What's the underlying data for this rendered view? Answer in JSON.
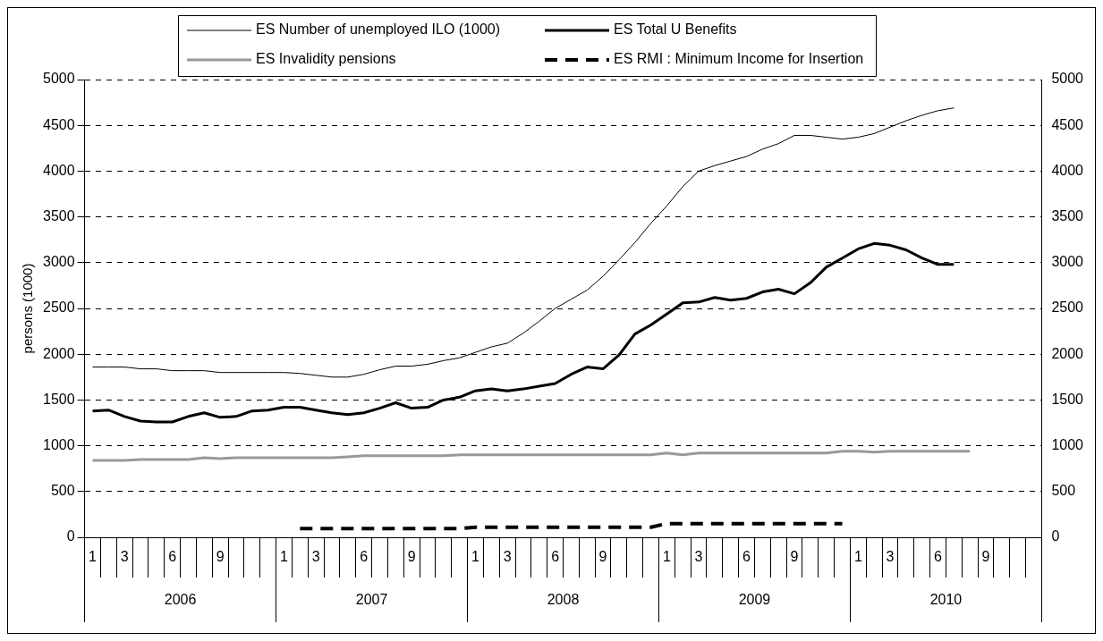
{
  "chart_data": {
    "type": "line",
    "categories": [
      "1",
      null,
      "3",
      null,
      null,
      "6",
      null,
      null,
      "9",
      null,
      null,
      null,
      "1",
      null,
      "3",
      null,
      null,
      "6",
      null,
      null,
      "9",
      null,
      null,
      null,
      "1",
      null,
      "3",
      null,
      null,
      "6",
      null,
      null,
      "9",
      null,
      null,
      null,
      "1",
      null,
      "3",
      null,
      null,
      "6",
      null,
      null,
      "9",
      null,
      null,
      null,
      "1",
      null,
      "3",
      null,
      null,
      "6",
      null,
      null,
      "9",
      null,
      null,
      null
    ],
    "series": [
      {
        "name": "ES Number of unemployed ILO (1000)",
        "color": "#000000",
        "line_style": "solid",
        "values": [
          1860,
          1860,
          1860,
          1840,
          1840,
          1820,
          1820,
          1820,
          1800,
          1800,
          1800,
          1800,
          1800,
          1790,
          1770,
          1750,
          1750,
          1780,
          1830,
          1870,
          1870,
          1890,
          1930,
          1960,
          2020,
          2080,
          2120,
          2230,
          2360,
          2500,
          2600,
          2700,
          2850,
          3030,
          3220,
          3430,
          3620,
          3830,
          4000,
          4060,
          4110,
          4160,
          4240,
          4300,
          4390,
          4390,
          4370,
          4350,
          4370,
          4410,
          4480,
          4550,
          4610,
          4660,
          4690,
          null,
          null,
          null,
          null,
          null
        ]
      },
      {
        "name": "ES Total U Benefits",
        "color": "#000000",
        "line_style": "solid",
        "values": [
          1380,
          1390,
          1320,
          1270,
          1260,
          1260,
          1320,
          1360,
          1310,
          1320,
          1380,
          1390,
          1420,
          1420,
          1390,
          1360,
          1340,
          1360,
          1410,
          1470,
          1410,
          1420,
          1500,
          1530,
          1600,
          1620,
          1600,
          1620,
          1650,
          1680,
          1780,
          1860,
          1840,
          1990,
          2220,
          2320,
          2440,
          2560,
          2570,
          2620,
          2590,
          2610,
          2680,
          2710,
          2660,
          2780,
          2950,
          3050,
          3150,
          3210,
          3190,
          3140,
          3050,
          2980,
          2980,
          null,
          null,
          null,
          null,
          null
        ]
      },
      {
        "name": "ES Invalidity pensions",
        "color": "#999999",
        "line_style": "solid",
        "values": [
          840,
          840,
          840,
          850,
          850,
          850,
          850,
          870,
          860,
          870,
          870,
          870,
          870,
          870,
          870,
          870,
          880,
          890,
          890,
          890,
          890,
          890,
          890,
          900,
          900,
          900,
          900,
          900,
          900,
          900,
          900,
          900,
          900,
          900,
          900,
          900,
          920,
          900,
          920,
          920,
          920,
          920,
          920,
          920,
          920,
          920,
          920,
          940,
          940,
          930,
          940,
          940,
          940,
          940,
          940,
          940,
          null,
          null,
          null,
          null
        ]
      },
      {
        "name": "ES RMI : Minimum Income for Insertion",
        "color": "#000000",
        "line_style": "dashed",
        "values": [
          null,
          null,
          null,
          null,
          null,
          null,
          null,
          null,
          null,
          null,
          null,
          null,
          null,
          95,
          95,
          95,
          95,
          95,
          95,
          95,
          95,
          95,
          95,
          95,
          110,
          110,
          110,
          110,
          110,
          110,
          110,
          110,
          110,
          110,
          110,
          110,
          150,
          150,
          150,
          150,
          150,
          150,
          150,
          150,
          150,
          150,
          150,
          150,
          null,
          null,
          null,
          null,
          null,
          null,
          null,
          null,
          null,
          null,
          null,
          null
        ]
      }
    ],
    "ylabel": "persons (1000)",
    "ylim": [
      0,
      5000
    ],
    "yticks": [
      0,
      500,
      1000,
      1500,
      2000,
      2500,
      3000,
      3500,
      4000,
      4500,
      5000
    ],
    "y2lim": [
      0,
      5000
    ],
    "y2ticks": [
      0,
      500,
      1000,
      1500,
      2000,
      2500,
      3000,
      3500,
      4000,
      4500,
      5000
    ],
    "annotations": [
      "2006",
      "2007",
      "2008",
      "2009",
      "2010"
    ],
    "grid": "y",
    "legend": "top"
  }
}
